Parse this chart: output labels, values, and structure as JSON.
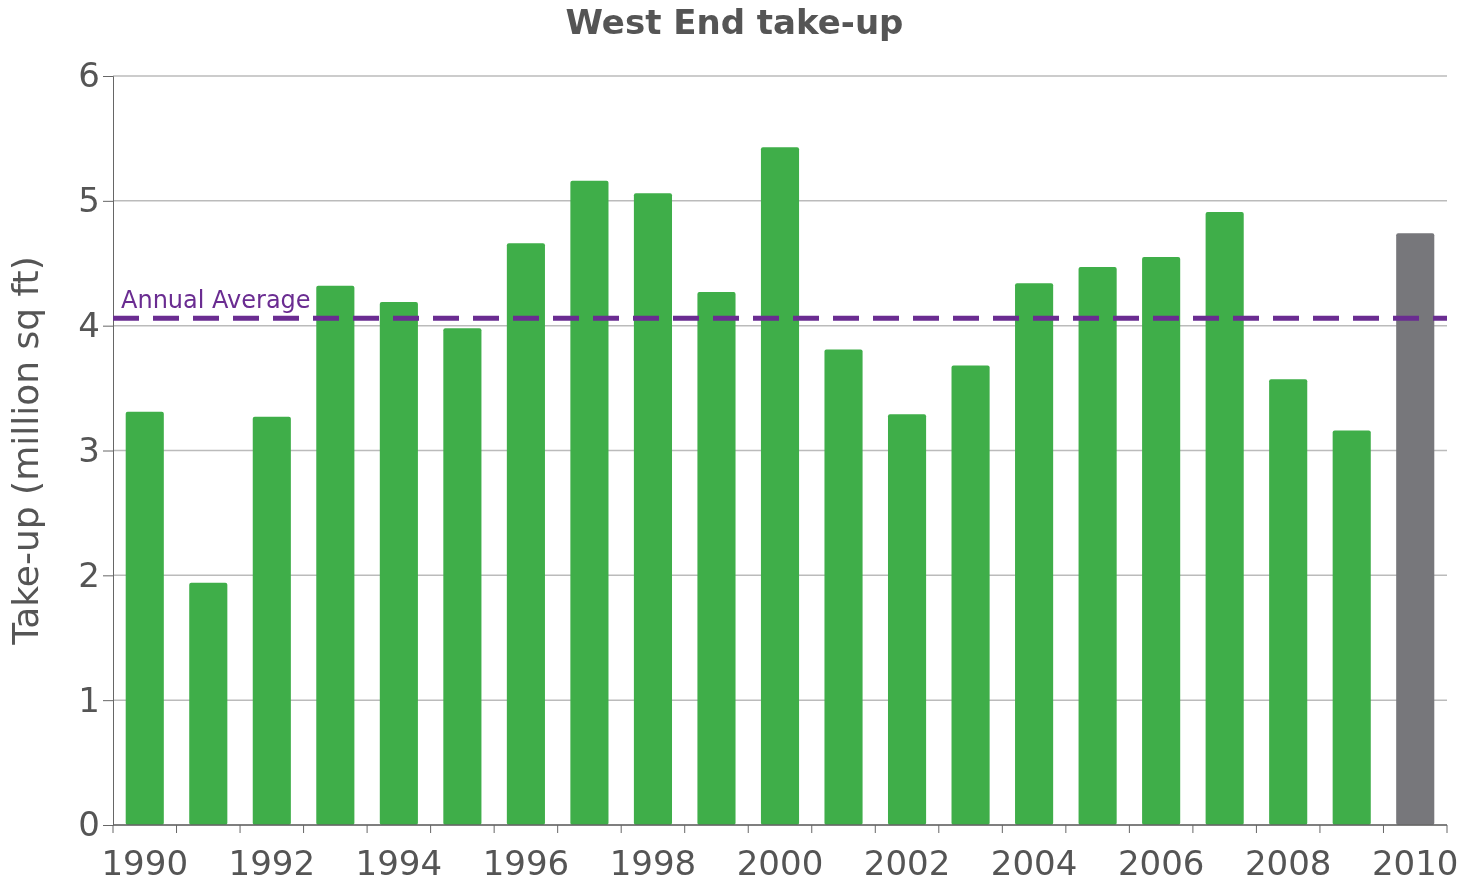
{
  "chart_data": {
    "type": "bar",
    "title": "West End take-up",
    "ylabel": "Take-up (million sq ft)",
    "categories": [
      "1990",
      null,
      "1992",
      null,
      "1994",
      null,
      "1996",
      null,
      "1998",
      null,
      "2000",
      null,
      "2002",
      null,
      "2004",
      null,
      "2006",
      null,
      "2008",
      null,
      "2010"
    ],
    "values": [
      3.31,
      1.94,
      3.27,
      4.32,
      4.19,
      3.98,
      4.66,
      5.16,
      5.06,
      4.27,
      5.43,
      3.81,
      3.29,
      3.68,
      4.34,
      4.47,
      4.55,
      4.91,
      3.57,
      3.16,
      4.74
    ],
    "colors": [
      "#3fae49",
      "#3fae49",
      "#3fae49",
      "#3fae49",
      "#3fae49",
      "#3fae49",
      "#3fae49",
      "#3fae49",
      "#3fae49",
      "#3fae49",
      "#3fae49",
      "#3fae49",
      "#3fae49",
      "#3fae49",
      "#3fae49",
      "#3fae49",
      "#3fae49",
      "#3fae49",
      "#3fae49",
      "#3fae49",
      "#77777b"
    ],
    "ylim": [
      0,
      6
    ],
    "yticks": [
      0,
      1,
      2,
      3,
      4,
      5,
      6
    ],
    "grid": "y",
    "ref_lines": [
      {
        "axis": "y",
        "value": 4.06,
        "label": "Annual Average",
        "color": "#6a2c91",
        "line_style": "dashed"
      }
    ]
  }
}
